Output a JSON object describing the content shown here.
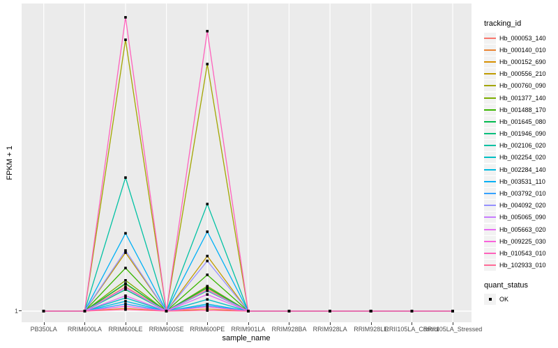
{
  "chart_data": {
    "type": "line",
    "title": "",
    "xlabel": "sample_name",
    "ylabel": "FPKM + 1",
    "y_axis": {
      "ticks": [
        "1"
      ],
      "baseline_value": 1,
      "note": "Log-like FPKM+1 axis; only the tick '1' is labeled. Series values below are encoded as fraction of panel height above the baseline value 1 (0 = FPKM+1 of 1, 1 = top of panel)."
    },
    "categories": [
      "PB350LA",
      "RRIM600LA",
      "RRIM600LE",
      "RRIM600SE",
      "RRIM600PE",
      "RRIM901LA",
      "RRIM928BA",
      "RRIM928LA",
      "RRIM928LE",
      "RRII105LA_Control",
      "RRII105LA_Stressed"
    ],
    "grid": "white major gridlines on grey panel",
    "legend_position": "right",
    "point_shape": "filled black square (quant_status = OK)",
    "series": [
      {
        "name": "Hb_000053_140",
        "color": "#F8766D",
        "values": [
          0,
          0,
          0.079,
          0,
          0.07,
          0,
          0,
          0,
          0,
          0,
          0
        ]
      },
      {
        "name": "Hb_000140_010",
        "color": "#EA8331",
        "values": [
          0,
          0,
          0.009,
          0,
          0.007,
          0,
          0,
          0,
          0,
          0,
          0
        ]
      },
      {
        "name": "Hb_000152_690",
        "color": "#D89000",
        "values": [
          0,
          0,
          0.088,
          0,
          0.075,
          0,
          0,
          0,
          0,
          0,
          0
        ]
      },
      {
        "name": "Hb_000556_210",
        "color": "#C09B00",
        "values": [
          0,
          0,
          0.19,
          0,
          0.179,
          0,
          0,
          0,
          0,
          0,
          0
        ]
      },
      {
        "name": "Hb_000760_090",
        "color": "#A3A500",
        "values": [
          0,
          0,
          0.882,
          0,
          0.803,
          0,
          0,
          0,
          0,
          0,
          0
        ]
      },
      {
        "name": "Hb_001377_140",
        "color": "#7CAE00",
        "values": [
          0,
          0,
          0.1,
          0,
          0.081,
          0,
          0,
          0,
          0,
          0,
          0
        ]
      },
      {
        "name": "Hb_001488_170",
        "color": "#39B600",
        "values": [
          0,
          0,
          0.14,
          0,
          0.118,
          0,
          0,
          0,
          0,
          0,
          0
        ]
      },
      {
        "name": "Hb_001645_080",
        "color": "#00BB4E",
        "values": [
          0,
          0,
          0.09,
          0,
          0.077,
          0,
          0,
          0,
          0,
          0,
          0
        ]
      },
      {
        "name": "Hb_001946_090",
        "color": "#00BF7D",
        "values": [
          0,
          0,
          0.07,
          0,
          0.066,
          0,
          0,
          0,
          0,
          0,
          0
        ]
      },
      {
        "name": "Hb_002106_020",
        "color": "#00C1A3",
        "values": [
          0,
          0,
          0.434,
          0,
          0.348,
          0,
          0,
          0,
          0,
          0,
          0
        ]
      },
      {
        "name": "Hb_002254_020",
        "color": "#00BFC4",
        "values": [
          0,
          0,
          0.043,
          0,
          0.038,
          0,
          0,
          0,
          0,
          0,
          0
        ]
      },
      {
        "name": "Hb_002284_140",
        "color": "#00BAE0",
        "values": [
          0,
          0,
          0.032,
          0,
          0.023,
          0,
          0,
          0,
          0,
          0,
          0
        ]
      },
      {
        "name": "Hb_003531_110",
        "color": "#00B0F6",
        "values": [
          0,
          0,
          0.253,
          0,
          0.258,
          0,
          0,
          0,
          0,
          0,
          0
        ]
      },
      {
        "name": "Hb_003792_010",
        "color": "#35A2FF",
        "values": [
          0,
          0,
          0.023,
          0,
          0.018,
          0,
          0,
          0,
          0,
          0,
          0
        ]
      },
      {
        "name": "Hb_004092_020",
        "color": "#9590FF",
        "values": [
          0,
          0,
          0.197,
          0,
          0.163,
          0,
          0,
          0,
          0,
          0,
          0
        ]
      },
      {
        "name": "Hb_005065_090",
        "color": "#C77CFF",
        "values": [
          0,
          0,
          0.075,
          0,
          0.068,
          0,
          0,
          0,
          0,
          0,
          0
        ]
      },
      {
        "name": "Hb_005663_020",
        "color": "#E76BF3",
        "values": [
          0,
          0,
          0.05,
          0,
          0.054,
          0,
          0,
          0,
          0,
          0,
          0
        ]
      },
      {
        "name": "Hb_009225_030",
        "color": "#FA62DB",
        "values": [
          0,
          0,
          0.016,
          0,
          0.014,
          0,
          0,
          0,
          0,
          0,
          0
        ]
      },
      {
        "name": "Hb_010543_010",
        "color": "#FF62BC",
        "values": [
          0,
          0,
          0.955,
          0,
          0.91,
          0,
          0,
          0,
          0,
          0,
          0
        ]
      },
      {
        "name": "Hb_102933_010",
        "color": "#FF6A98",
        "values": [
          0,
          0,
          0.005,
          0,
          0.002,
          0,
          0,
          0,
          0,
          0,
          0
        ]
      }
    ]
  },
  "axes": {
    "y_title": "FPKM + 1",
    "x_title": "sample_name",
    "y_tick_label": "1"
  },
  "legend": {
    "tracking_title": "tracking_id",
    "quant_title": "quant_status",
    "quant_ok_label": "OK"
  },
  "colors": {
    "panel_bg": "#EBEBEB",
    "gridline": "#FFFFFF",
    "point": "#000000",
    "axis_text": "#4D4D4D",
    "legend_key_bg": "#F2F2F2"
  }
}
